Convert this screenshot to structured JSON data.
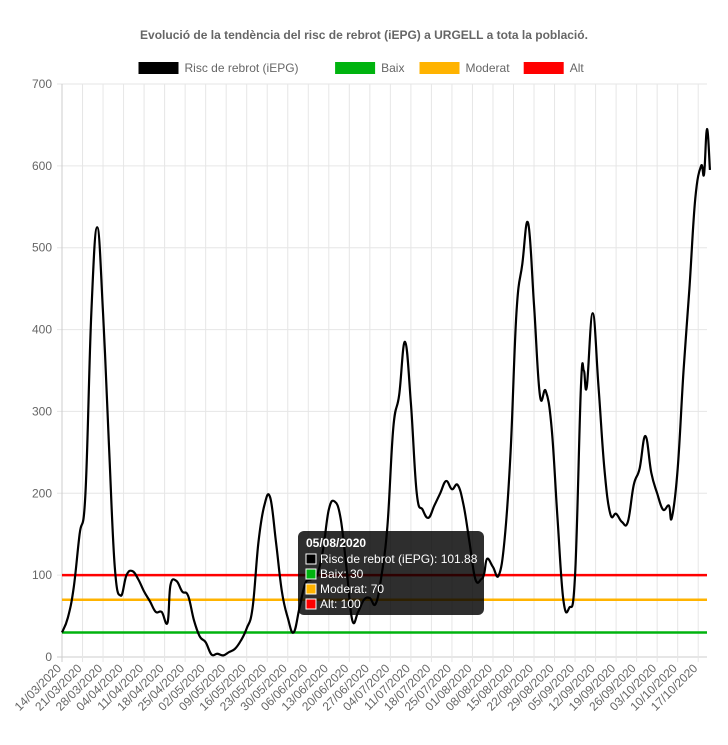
{
  "chart_data": {
    "type": "line",
    "title": "Evolució de la tendència del risc de rebrot (iEPG) a URGELL a tota la població.",
    "ylim": [
      0,
      700
    ],
    "y_ticks": [
      0,
      100,
      200,
      300,
      400,
      500,
      600,
      700
    ],
    "grid": true,
    "legend_position": "top",
    "x_start": "14/03/2020",
    "x_end": "20/10/2020",
    "x_tick_labels": [
      "14/03/2020",
      "21/03/2020",
      "28/03/2020",
      "04/04/2020",
      "11/04/2020",
      "18/04/2020",
      "25/04/2020",
      "02/05/2020",
      "09/05/2020",
      "16/05/2020",
      "23/05/2020",
      "30/05/2020",
      "06/06/2020",
      "13/06/2020",
      "20/06/2020",
      "27/06/2020",
      "04/07/2020",
      "11/07/2020",
      "18/07/2020",
      "25/07/2020",
      "01/08/2020",
      "08/08/2020",
      "15/08/2020",
      "22/08/2020",
      "29/08/2020",
      "05/09/2020",
      "12/09/2020",
      "19/09/2020",
      "26/09/2020",
      "03/10/2020",
      "10/10/2020",
      "17/10/2020"
    ],
    "series": [
      {
        "name": "Risc de rebrot (iEPG)",
        "color": "#000000",
        "points": [
          [
            "14/03/2020",
            30
          ],
          [
            "16/03/2020",
            48
          ],
          [
            "18/03/2020",
            85
          ],
          [
            "20/03/2020",
            150
          ],
          [
            "22/03/2020",
            200
          ],
          [
            "24/03/2020",
            420
          ],
          [
            "26/03/2020",
            525
          ],
          [
            "28/03/2020",
            420
          ],
          [
            "30/03/2020",
            260
          ],
          [
            "01/04/2020",
            110
          ],
          [
            "03/04/2020",
            75
          ],
          [
            "05/04/2020",
            100
          ],
          [
            "07/04/2020",
            105
          ],
          [
            "09/04/2020",
            95
          ],
          [
            "11/04/2020",
            80
          ],
          [
            "13/04/2020",
            68
          ],
          [
            "15/04/2020",
            55
          ],
          [
            "17/04/2020",
            55
          ],
          [
            "19/04/2020",
            42
          ],
          [
            "20/04/2020",
            88
          ],
          [
            "22/04/2020",
            93
          ],
          [
            "24/04/2020",
            80
          ],
          [
            "26/04/2020",
            75
          ],
          [
            "28/04/2020",
            45
          ],
          [
            "30/04/2020",
            25
          ],
          [
            "02/05/2020",
            18
          ],
          [
            "04/05/2020",
            3
          ],
          [
            "06/05/2020",
            4
          ],
          [
            "08/05/2020",
            2
          ],
          [
            "10/05/2020",
            6
          ],
          [
            "12/05/2020",
            10
          ],
          [
            "14/05/2020",
            20
          ],
          [
            "16/05/2020",
            35
          ],
          [
            "18/05/2020",
            60
          ],
          [
            "20/05/2020",
            140
          ],
          [
            "22/05/2020",
            185
          ],
          [
            "24/05/2020",
            195
          ],
          [
            "26/05/2020",
            140
          ],
          [
            "28/05/2020",
            80
          ],
          [
            "30/05/2020",
            48
          ],
          [
            "01/06/2020",
            30
          ],
          [
            "03/06/2020",
            60
          ],
          [
            "05/06/2020",
            90
          ],
          [
            "07/06/2020",
            95
          ],
          [
            "09/06/2020",
            100
          ],
          [
            "11/06/2020",
            130
          ],
          [
            "13/06/2020",
            180
          ],
          [
            "15/06/2020",
            190
          ],
          [
            "17/06/2020",
            170
          ],
          [
            "19/06/2020",
            110
          ],
          [
            "21/06/2020",
            45
          ],
          [
            "23/06/2020",
            55
          ],
          [
            "25/06/2020",
            70
          ],
          [
            "27/06/2020",
            72
          ],
          [
            "29/06/2020",
            65
          ],
          [
            "01/07/2020",
            100
          ],
          [
            "03/07/2020",
            160
          ],
          [
            "05/07/2020",
            280
          ],
          [
            "07/07/2020",
            320
          ],
          [
            "09/07/2020",
            385
          ],
          [
            "11/07/2020",
            310
          ],
          [
            "13/07/2020",
            200
          ],
          [
            "15/07/2020",
            180
          ],
          [
            "17/07/2020",
            170
          ],
          [
            "19/07/2020",
            185
          ],
          [
            "21/07/2020",
            200
          ],
          [
            "23/07/2020",
            215
          ],
          [
            "25/07/2020",
            205
          ],
          [
            "27/07/2020",
            210
          ],
          [
            "29/07/2020",
            185
          ],
          [
            "31/07/2020",
            140
          ],
          [
            "02/08/2020",
            95
          ],
          [
            "04/08/2020",
            95
          ],
          [
            "05/08/2020",
            101.88
          ],
          [
            "06/08/2020",
            120
          ],
          [
            "08/08/2020",
            110
          ],
          [
            "10/08/2020",
            100
          ],
          [
            "12/08/2020",
            145
          ],
          [
            "14/08/2020",
            250
          ],
          [
            "16/08/2020",
            420
          ],
          [
            "18/08/2020",
            480
          ],
          [
            "20/08/2020",
            530
          ],
          [
            "22/08/2020",
            430
          ],
          [
            "24/08/2020",
            320
          ],
          [
            "26/08/2020",
            325
          ],
          [
            "28/08/2020",
            280
          ],
          [
            "30/08/2020",
            170
          ],
          [
            "01/09/2020",
            70
          ],
          [
            "03/09/2020",
            60
          ],
          [
            "05/09/2020",
            100
          ],
          [
            "07/09/2020",
            330
          ],
          [
            "08/09/2020",
            350
          ],
          [
            "09/09/2020",
            330
          ],
          [
            "11/09/2020",
            420
          ],
          [
            "13/09/2020",
            330
          ],
          [
            "15/09/2020",
            230
          ],
          [
            "17/09/2020",
            175
          ],
          [
            "19/09/2020",
            175
          ],
          [
            "21/09/2020",
            165
          ],
          [
            "23/09/2020",
            165
          ],
          [
            "25/09/2020",
            210
          ],
          [
            "27/09/2020",
            230
          ],
          [
            "29/09/2020",
            270
          ],
          [
            "01/10/2020",
            225
          ],
          [
            "03/10/2020",
            200
          ],
          [
            "05/10/2020",
            180
          ],
          [
            "07/10/2020",
            185
          ],
          [
            "08/10/2020",
            170
          ],
          [
            "10/10/2020",
            230
          ],
          [
            "12/10/2020",
            350
          ],
          [
            "14/10/2020",
            450
          ],
          [
            "16/10/2020",
            560
          ],
          [
            "18/10/2020",
            600
          ],
          [
            "19/10/2020",
            590
          ],
          [
            "20/10/2020",
            645
          ],
          [
            "21/10/2020",
            595
          ]
        ]
      },
      {
        "name": "Baix",
        "color": "#00b30f",
        "value": 30
      },
      {
        "name": "Moderat",
        "color": "#ffb300",
        "value": 70
      },
      {
        "name": "Alt",
        "color": "#ff0000",
        "value": 100
      }
    ],
    "tooltip": {
      "date": "05/08/2020",
      "lines": [
        {
          "label": "Risc de rebrot (iEPG): 101.88",
          "color": "#000000"
        },
        {
          "label": "Baix: 30",
          "color": "#00b30f"
        },
        {
          "label": "Moderat: 70",
          "color": "#ffb300"
        },
        {
          "label": "Alt: 100",
          "color": "#ff0000"
        }
      ]
    }
  }
}
